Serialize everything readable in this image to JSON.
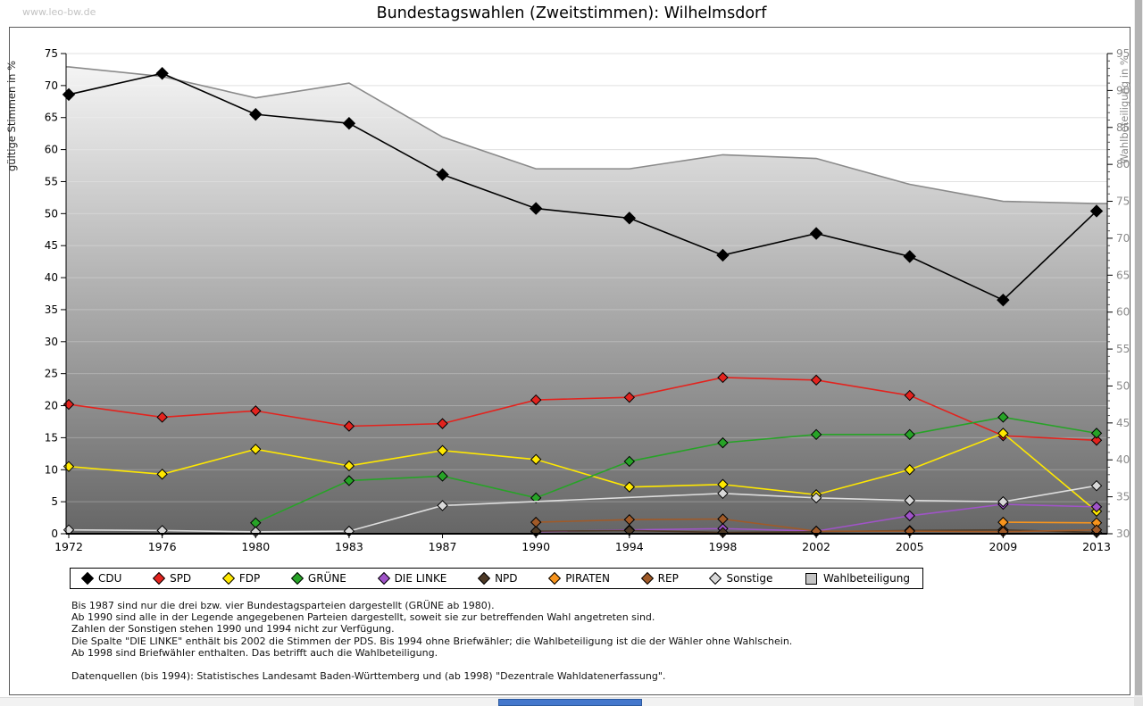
{
  "header": {
    "watermark": "www.leo-bw.de",
    "title": "Bundestagswahlen (Zweitstimmen): Wilhelmsdorf"
  },
  "chart_data": {
    "type": "line",
    "title": "Bundestagswahlen (Zweitstimmen): Wilhelmsdorf",
    "x_categories": [
      "1972",
      "1976",
      "1980",
      "1983",
      "1987",
      "1990",
      "1994",
      "1998",
      "2002",
      "2005",
      "2009",
      "2013"
    ],
    "left_axis": {
      "label": "gültige Stimmen in %",
      "min": 0,
      "max": 75,
      "step": 5
    },
    "right_axis": {
      "label": "Wahlbeteiligung in %",
      "min": 30,
      "max": 95,
      "step": 5
    },
    "grid": "horizontal, every 5 units",
    "legend_position": "bottom box",
    "series": [
      {
        "name": "Wahlbeteiligung",
        "axis": "right",
        "style": "area",
        "color": "#8a8a8a",
        "fill_top": "#f8f8f8",
        "fill_bottom": "#666666",
        "marker": "square",
        "values": [
          93.2,
          91.9,
          89.0,
          91.0,
          83.7,
          79.4,
          79.4,
          81.3,
          80.8,
          77.3,
          75.0,
          74.7
        ]
      },
      {
        "name": "CDU",
        "axis": "left",
        "color": "#000000",
        "marker": "diamond",
        "values": [
          68.6,
          71.9,
          65.5,
          64.1,
          56.1,
          50.8,
          49.3,
          43.5,
          46.9,
          43.3,
          36.5,
          50.4
        ]
      },
      {
        "name": "SPD",
        "axis": "left",
        "color": "#e3231e",
        "marker": "diamond",
        "values": [
          20.2,
          18.2,
          19.2,
          16.8,
          17.2,
          20.9,
          21.3,
          24.4,
          24.0,
          21.6,
          15.3,
          14.6
        ]
      },
      {
        "name": "FDP",
        "axis": "left",
        "color": "#ffe800",
        "marker": "diamond",
        "values": [
          10.5,
          9.3,
          13.2,
          10.6,
          13.0,
          11.6,
          7.3,
          7.7,
          6.1,
          10.0,
          15.7,
          3.5
        ]
      },
      {
        "name": "GRÜNE",
        "axis": "left",
        "color": "#27a327",
        "marker": "diamond",
        "values": [
          null,
          null,
          1.7,
          8.3,
          9.0,
          5.6,
          11.3,
          14.2,
          15.5,
          15.5,
          18.2,
          15.7
        ]
      },
      {
        "name": "DIE LINKE",
        "axis": "left",
        "color": "#a054c8",
        "marker": "diamond",
        "values": [
          null,
          null,
          null,
          null,
          null,
          0.3,
          0.6,
          0.8,
          0.4,
          2.8,
          4.6,
          4.2
        ]
      },
      {
        "name": "NPD",
        "axis": "left",
        "color": "#4e3a26",
        "marker": "diamond",
        "values": [
          null,
          null,
          null,
          null,
          null,
          0.4,
          0.5,
          0.2,
          0.3,
          0.5,
          0.6,
          0.2
        ]
      },
      {
        "name": "PIRATEN",
        "axis": "left",
        "color": "#f7941d",
        "marker": "diamond",
        "values": [
          null,
          null,
          null,
          null,
          null,
          null,
          null,
          null,
          null,
          null,
          1.8,
          1.7
        ]
      },
      {
        "name": "REP",
        "axis": "left",
        "color": "#a05a28",
        "marker": "diamond",
        "values": [
          null,
          null,
          null,
          null,
          null,
          1.8,
          2.2,
          2.3,
          0.4,
          0.4,
          0.3,
          0.6
        ]
      },
      {
        "name": "Sonstige",
        "axis": "left",
        "color": "#d9d9d9",
        "line_color": "#dedede",
        "marker": "diamond",
        "values": [
          0.6,
          0.5,
          0.3,
          0.4,
          4.4,
          null,
          null,
          6.3,
          5.6,
          5.2,
          5.0,
          7.5
        ]
      }
    ],
    "legend_order": [
      "CDU",
      "SPD",
      "FDP",
      "GRÜNE",
      "DIE LINKE",
      "NPD",
      "PIRATEN",
      "REP",
      "Sonstige",
      "Wahlbeteiligung"
    ]
  },
  "notes": {
    "lines": [
      "Bis 1987 sind nur die drei bzw. vier Bundestagsparteien dargestellt (GRÜNE ab 1980).",
      "Ab 1990 sind alle in der Legende angegebenen Parteien dargestellt, soweit sie zur betreffenden Wahl angetreten sind.",
      "Zahlen der Sonstigen stehen 1990 und 1994 nicht zur Verfügung.",
      "Die Spalte \"DIE LINKE\" enthält bis 2002 die Stimmen der PDS. Bis 1994 ohne Briefwähler; die Wahlbeteiligung ist die der Wähler ohne Wahlschein.",
      "Ab 1998 sind Briefwähler enthalten. Das betrifft auch die Wahlbeteiligung.",
      "",
      "Datenquellen (bis 1994): Statistisches Landesamt Baden-Württemberg und (ab 1998) \"Dezentrale Wahldatenerfassung\"."
    ]
  }
}
